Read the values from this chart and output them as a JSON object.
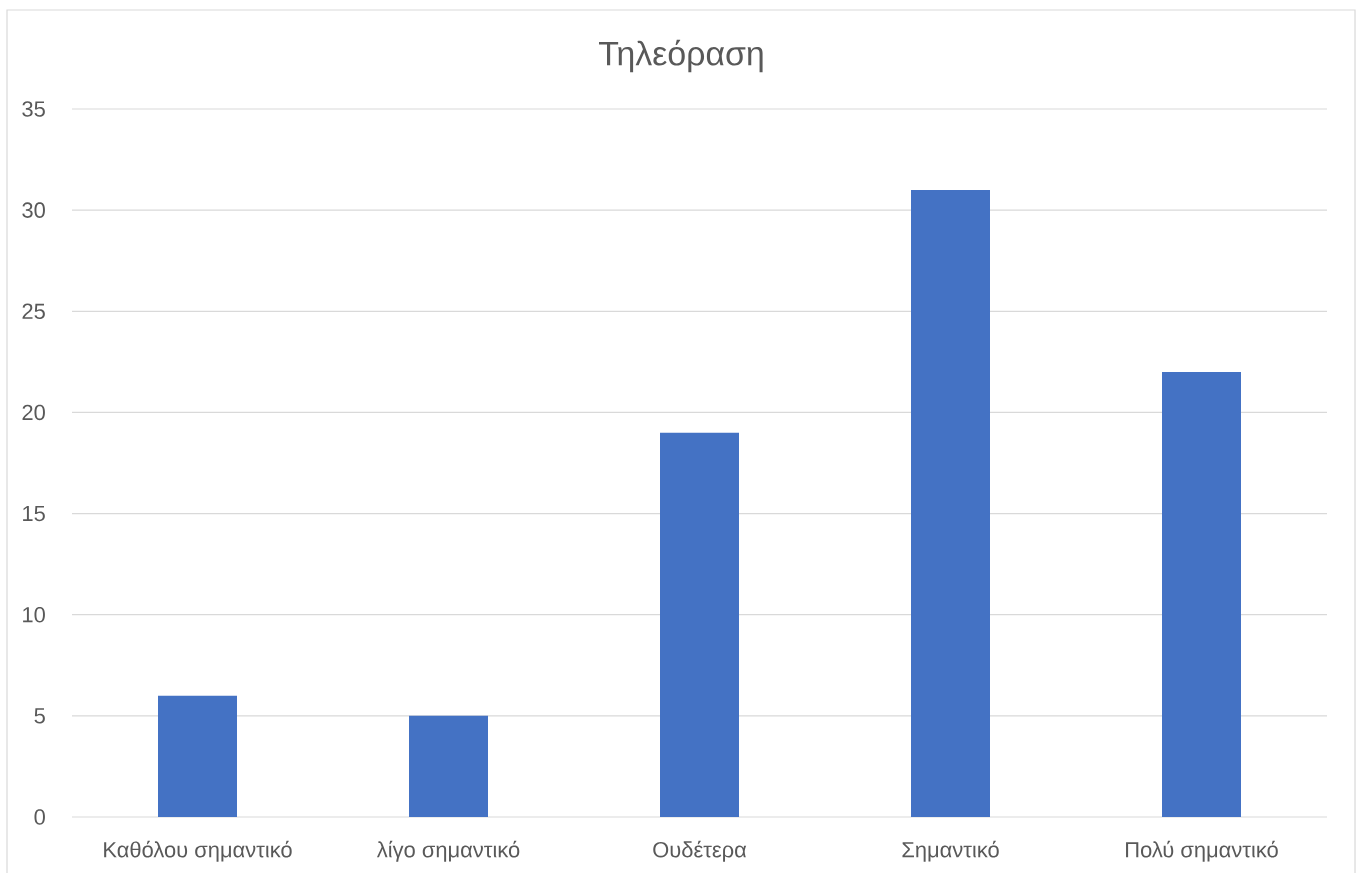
{
  "chart_data": {
    "type": "bar",
    "title": "Τηλεόραση",
    "categories": [
      "Καθόλου σημαντικό",
      "λίγο σημαντικό",
      "Ουδέτερα",
      "Σημαντικό",
      "Πολύ σημαντικό"
    ],
    "values": [
      6,
      5,
      19,
      31,
      22
    ],
    "color": "#4472c4",
    "ylim": [
      0,
      35
    ],
    "yticks": [
      0,
      5,
      10,
      15,
      20,
      25,
      30,
      35
    ],
    "grid": "y"
  }
}
